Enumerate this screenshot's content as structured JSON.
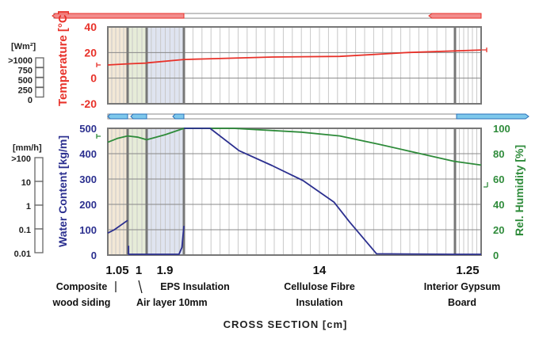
{
  "chart_data": [
    {
      "type": "line",
      "ylabel": "Temperature [°C]",
      "ylim": [
        -20,
        40
      ],
      "yticks": [
        "40",
        "20",
        "0",
        "-20"
      ],
      "series": [
        {
          "name": "Temperature",
          "color": "#e8322a",
          "x": [
            0,
            1.05,
            2.05,
            2.1,
            3.95,
            8.5,
            12,
            15.5,
            19.2
          ],
          "y": [
            10.3,
            11.2,
            11.8,
            12.0,
            14.6,
            16.5,
            17.0,
            20.0,
            22.0
          ]
        }
      ],
      "grid": true
    },
    {
      "type": "line",
      "ylabel_left": "Water Content [kg/m]",
      "ylabel_right": "Rel. Humidity [%]",
      "ylim_left": [
        0,
        500
      ],
      "ylim_right": [
        0,
        100
      ],
      "yticks_left": [
        "500",
        "400",
        "300",
        "200",
        "100",
        "0"
      ],
      "yticks_right": [
        "100",
        "80",
        "60",
        "40",
        "20",
        "0"
      ],
      "series": [
        {
          "name": "Rel. Humidity",
          "color": "#2e8b3a",
          "axis": "right",
          "x": [
            0,
            0.5,
            1.05,
            1.6,
            2.05,
            2.3,
            3.0,
            3.95,
            6.5,
            10,
            12,
            14,
            17.9,
            19.2
          ],
          "y": [
            89,
            92,
            94,
            93,
            91,
            92,
            95,
            100,
            100,
            97,
            94,
            87.5,
            74,
            71
          ]
        },
        {
          "name": "Water Content",
          "color": "#2b2f8f",
          "axis": "left",
          "x": [
            0,
            0.35,
            1.05
          ],
          "y": [
            87,
            100,
            137
          ]
        },
        {
          "name": "Water Content air",
          "color": "#2b2f8f",
          "axis": "left",
          "x": [
            1.1,
            1.1,
            1.3,
            3.7,
            3.85,
            3.95
          ],
          "y": [
            37,
            3,
            3,
            3,
            30,
            115
          ]
        },
        {
          "name": "Water Content cellulose",
          "color": "#2b2f8f",
          "axis": "left",
          "x": [
            3.95,
            5.3,
            6.8,
            8.5,
            10.1,
            11.7,
            12.5,
            13.9,
            17.9,
            19.2
          ],
          "y": [
            500,
            500,
            412,
            353,
            294,
            209,
            131,
            5,
            3,
            3
          ]
        }
      ],
      "grid": true
    }
  ],
  "layers": [
    {
      "thickness": "1.05",
      "name1": "Composite",
      "name2": "wood siding",
      "color": "#f3e8d6"
    },
    {
      "thickness": "1",
      "name1": "Air layer 10mm",
      "name2": "",
      "color": "#e6ecd8"
    },
    {
      "thickness": "1.9",
      "name1": "EPS Insulation",
      "name2": "",
      "color": "#dfe4f0"
    },
    {
      "thickness": "14",
      "name1": "Cellulose Fibre",
      "name2": "Insulation",
      "color": "#ffffff"
    },
    {
      "thickness": "1.25",
      "name1": "Interior Gypsum",
      "name2": "Board",
      "color": "#ffffff"
    }
  ],
  "xlabel": "CROSS SECTION [cm]",
  "radiation_legend": {
    "unit": "[Wm²]",
    "levels": [
      ">1000",
      "750",
      "500",
      "250",
      "0"
    ]
  },
  "rain_legend": {
    "unit": "[mm/h]",
    "levels": [
      ">100",
      "10",
      "1",
      "0.1",
      "0.01"
    ]
  },
  "colors": {
    "temperature": "#e8322a",
    "water": "#2b2f8f",
    "rh": "#2e8b3a",
    "flux_red": "#f28b8b",
    "flux_blue": "#7ec8ec"
  }
}
